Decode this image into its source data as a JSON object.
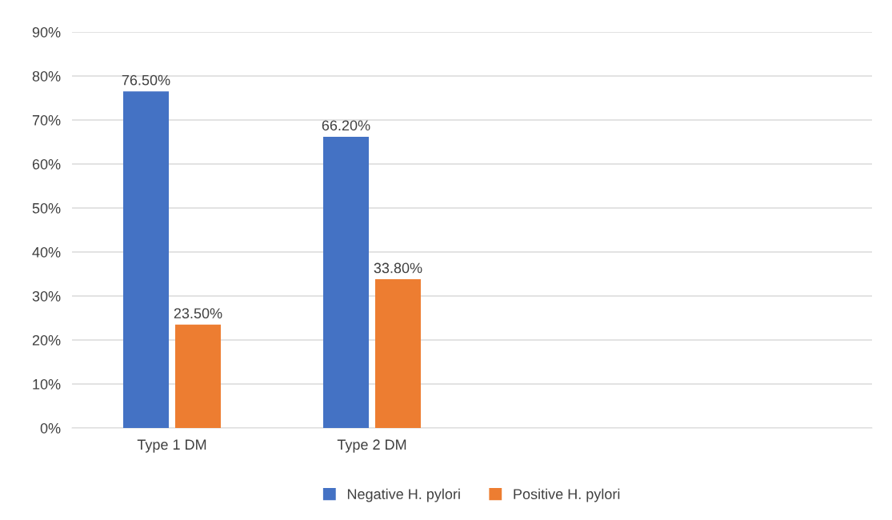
{
  "chart_data": {
    "type": "bar",
    "categories": [
      "Type 1 DM",
      "Type 2 DM",
      null,
      null
    ],
    "series": [
      {
        "name": "Negative H. pylori",
        "color": "#4472c4",
        "values": [
          76.5,
          66.2,
          null,
          null
        ],
        "value_labels": [
          "76.50%",
          "66.20%",
          null,
          null
        ]
      },
      {
        "name": "Positive H. pylori",
        "color": "#ed7d31",
        "values": [
          23.5,
          33.8,
          null,
          null
        ],
        "value_labels": [
          "23.50%",
          "33.80%",
          null,
          null
        ]
      }
    ],
    "ylim": [
      0,
      90
    ],
    "yticks": [
      {
        "value": 0,
        "label": "0%"
      },
      {
        "value": 10,
        "label": "10%"
      },
      {
        "value": 20,
        "label": "20%"
      },
      {
        "value": 30,
        "label": "30%"
      },
      {
        "value": 40,
        "label": "40%"
      },
      {
        "value": 50,
        "label": "50%"
      },
      {
        "value": 60,
        "label": "60%"
      },
      {
        "value": 70,
        "label": "70%"
      },
      {
        "value": 80,
        "label": "80%"
      },
      {
        "value": 90,
        "label": "90%"
      }
    ],
    "grid": "y",
    "legend": "bottom"
  }
}
